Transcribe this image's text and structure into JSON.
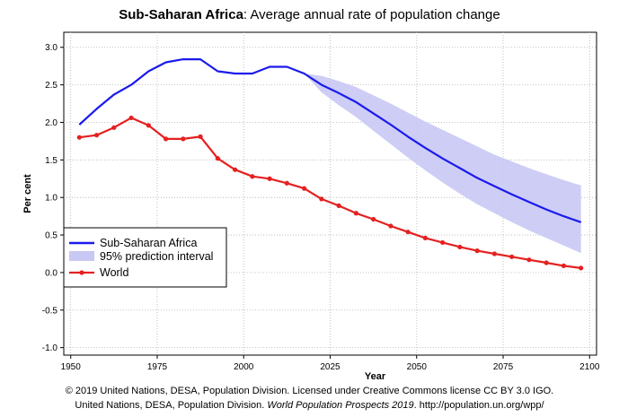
{
  "header": {
    "title_region": "Sub-Saharan Africa",
    "title_rest": ": Average annual rate of population change"
  },
  "footer": {
    "line1": "© 2019 United Nations, DESA, Population Division. Licensed under Creative Commons license CC BY 3.0 IGO.",
    "line2_prefix": "United Nations, DESA, Population Division. ",
    "line2_italic": "World Population Prospects 2019",
    "line2_suffix": ". http://population.un.org/wpp/"
  },
  "colors": {
    "africa": "#1a1aee",
    "world": "#e52020",
    "interval_fill": "#c8c8f4",
    "grid": "#b4b4b4"
  },
  "chart_data": {
    "type": "line",
    "title": "Sub-Saharan Africa: Average annual rate of population change",
    "xlabel": "Year",
    "ylabel": "Per cent",
    "xlim": [
      1948,
      2102
    ],
    "ylim": [
      -1.1,
      3.2
    ],
    "xticks": [
      1950,
      1975,
      2000,
      2025,
      2050,
      2075,
      2100
    ],
    "yticks": [
      -1.0,
      -0.5,
      0.0,
      0.5,
      1.0,
      1.5,
      2.0,
      2.5,
      3.0
    ],
    "ytick_labels": [
      "-1.0",
      "-0.5",
      "0.0",
      "0.5",
      "1.0",
      "1.5",
      "2.0",
      "2.5",
      "3.0"
    ],
    "grid": true,
    "legend_position": "lower-left",
    "series": [
      {
        "name": "Sub-Saharan Africa",
        "x": [
          1952.5,
          1957.5,
          1962.5,
          1967.5,
          1972.5,
          1977.5,
          1982.5,
          1987.5,
          1992.5,
          1997.5,
          2002.5,
          2007.5,
          2012.5,
          2017.5,
          2022.5,
          2027.5,
          2032.5,
          2037.5,
          2042.5,
          2047.5,
          2052.5,
          2057.5,
          2062.5,
          2067.5,
          2072.5,
          2077.5,
          2082.5,
          2087.5,
          2092.5,
          2097.5
        ],
        "values": [
          1.97,
          2.18,
          2.37,
          2.5,
          2.68,
          2.8,
          2.84,
          2.84,
          2.68,
          2.65,
          2.65,
          2.74,
          2.74,
          2.65,
          2.5,
          2.39,
          2.27,
          2.12,
          1.97,
          1.81,
          1.66,
          1.52,
          1.39,
          1.26,
          1.15,
          1.04,
          0.94,
          0.84,
          0.75,
          0.67
        ]
      },
      {
        "name": "95% prediction interval",
        "x": [
          2017.5,
          2022.5,
          2027.5,
          2032.5,
          2037.5,
          2042.5,
          2047.5,
          2052.5,
          2057.5,
          2062.5,
          2067.5,
          2072.5,
          2077.5,
          2082.5,
          2087.5,
          2092.5,
          2097.5
        ],
        "upper": [
          2.65,
          2.62,
          2.55,
          2.47,
          2.36,
          2.25,
          2.13,
          2.01,
          1.9,
          1.79,
          1.68,
          1.57,
          1.48,
          1.39,
          1.31,
          1.23,
          1.16
        ],
        "lower": [
          2.65,
          2.4,
          2.23,
          2.07,
          1.89,
          1.71,
          1.53,
          1.36,
          1.2,
          1.05,
          0.91,
          0.79,
          0.67,
          0.56,
          0.46,
          0.36,
          0.26
        ]
      },
      {
        "name": "World",
        "x": [
          1952.5,
          1957.5,
          1962.5,
          1967.5,
          1972.5,
          1977.5,
          1982.5,
          1987.5,
          1992.5,
          1997.5,
          2002.5,
          2007.5,
          2012.5,
          2017.5,
          2022.5,
          2027.5,
          2032.5,
          2037.5,
          2042.5,
          2047.5,
          2052.5,
          2057.5,
          2062.5,
          2067.5,
          2072.5,
          2077.5,
          2082.5,
          2087.5,
          2092.5,
          2097.5
        ],
        "values": [
          1.8,
          1.83,
          1.93,
          2.06,
          1.96,
          1.78,
          1.78,
          1.81,
          1.52,
          1.37,
          1.28,
          1.25,
          1.19,
          1.12,
          0.98,
          0.89,
          0.79,
          0.71,
          0.62,
          0.54,
          0.46,
          0.4,
          0.34,
          0.29,
          0.25,
          0.21,
          0.17,
          0.13,
          0.09,
          0.06
        ]
      }
    ]
  }
}
